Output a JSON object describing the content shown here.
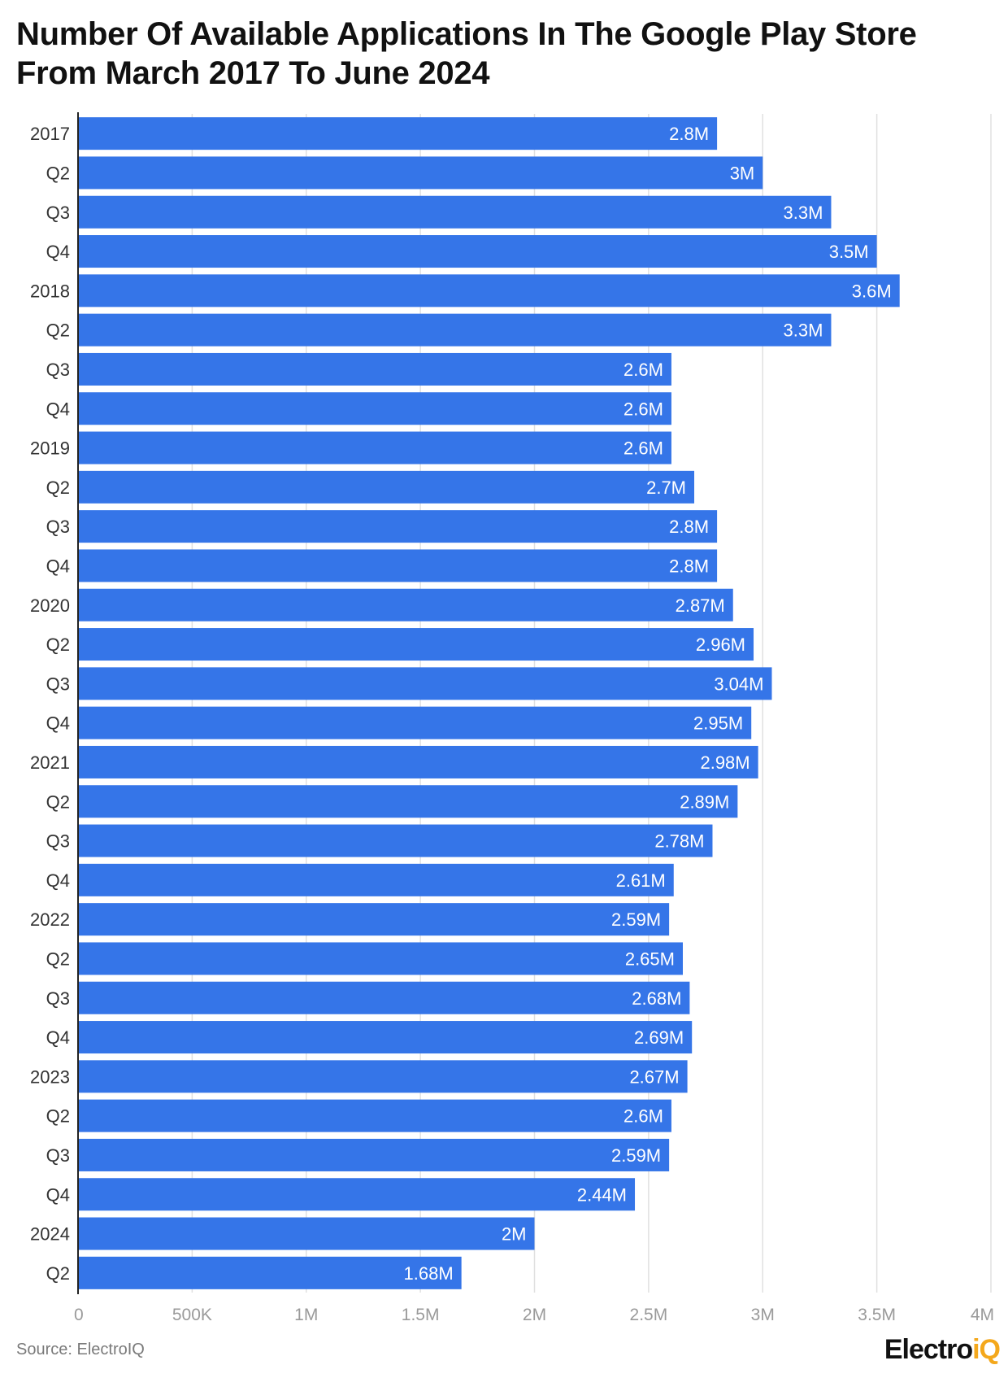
{
  "title": "Number Of Available Applications In The Google Play Store From March 2017 To June 2024",
  "source": "Source: ElectroIQ",
  "logo": {
    "main": "Electro",
    "accent": "iQ"
  },
  "colors": {
    "bar": "#3575e8",
    "grid": "#e0e0e0",
    "axis": "#222222",
    "label": "#ffffff",
    "tick": "#9a9a9a"
  },
  "chart_data": {
    "type": "bar",
    "orientation": "horizontal",
    "categories": [
      "2017",
      "Q2",
      "Q3",
      "Q4",
      "2018",
      "Q2",
      "Q3",
      "Q4",
      "2019",
      "Q2",
      "Q3",
      "Q4",
      "2020",
      "Q2",
      "Q3",
      "Q4",
      "2021",
      "Q2",
      "Q3",
      "Q4",
      "2022",
      "Q2",
      "Q3",
      "Q4",
      "2023",
      "Q2",
      "Q3",
      "Q4",
      "2024",
      "Q2"
    ],
    "values": [
      2800000,
      3000000,
      3300000,
      3500000,
      3600000,
      3300000,
      2600000,
      2600000,
      2600000,
      2700000,
      2800000,
      2800000,
      2870000,
      2960000,
      3040000,
      2950000,
      2980000,
      2890000,
      2780000,
      2610000,
      2590000,
      2650000,
      2680000,
      2690000,
      2670000,
      2600000,
      2590000,
      2440000,
      2000000,
      1680000
    ],
    "data_labels": [
      "2.8M",
      "3M",
      "3.3M",
      "3.5M",
      "3.6M",
      "3.3M",
      "2.6M",
      "2.6M",
      "2.6M",
      "2.7M",
      "2.8M",
      "2.8M",
      "2.87M",
      "2.96M",
      "3.04M",
      "2.95M",
      "2.98M",
      "2.89M",
      "2.78M",
      "2.61M",
      "2.59M",
      "2.65M",
      "2.68M",
      "2.69M",
      "2.67M",
      "2.6M",
      "2.59M",
      "2.44M",
      "2M",
      "1.68M"
    ],
    "x_ticks": [
      0,
      500000,
      1000000,
      1500000,
      2000000,
      2500000,
      3000000,
      3500000,
      4000000
    ],
    "x_tick_labels": [
      "0",
      "500K",
      "1M",
      "1.5M",
      "2M",
      "2.5M",
      "3M",
      "3.5M",
      "4M"
    ],
    "xlim": [
      0,
      4000000
    ],
    "grid": true,
    "legend": "none"
  }
}
